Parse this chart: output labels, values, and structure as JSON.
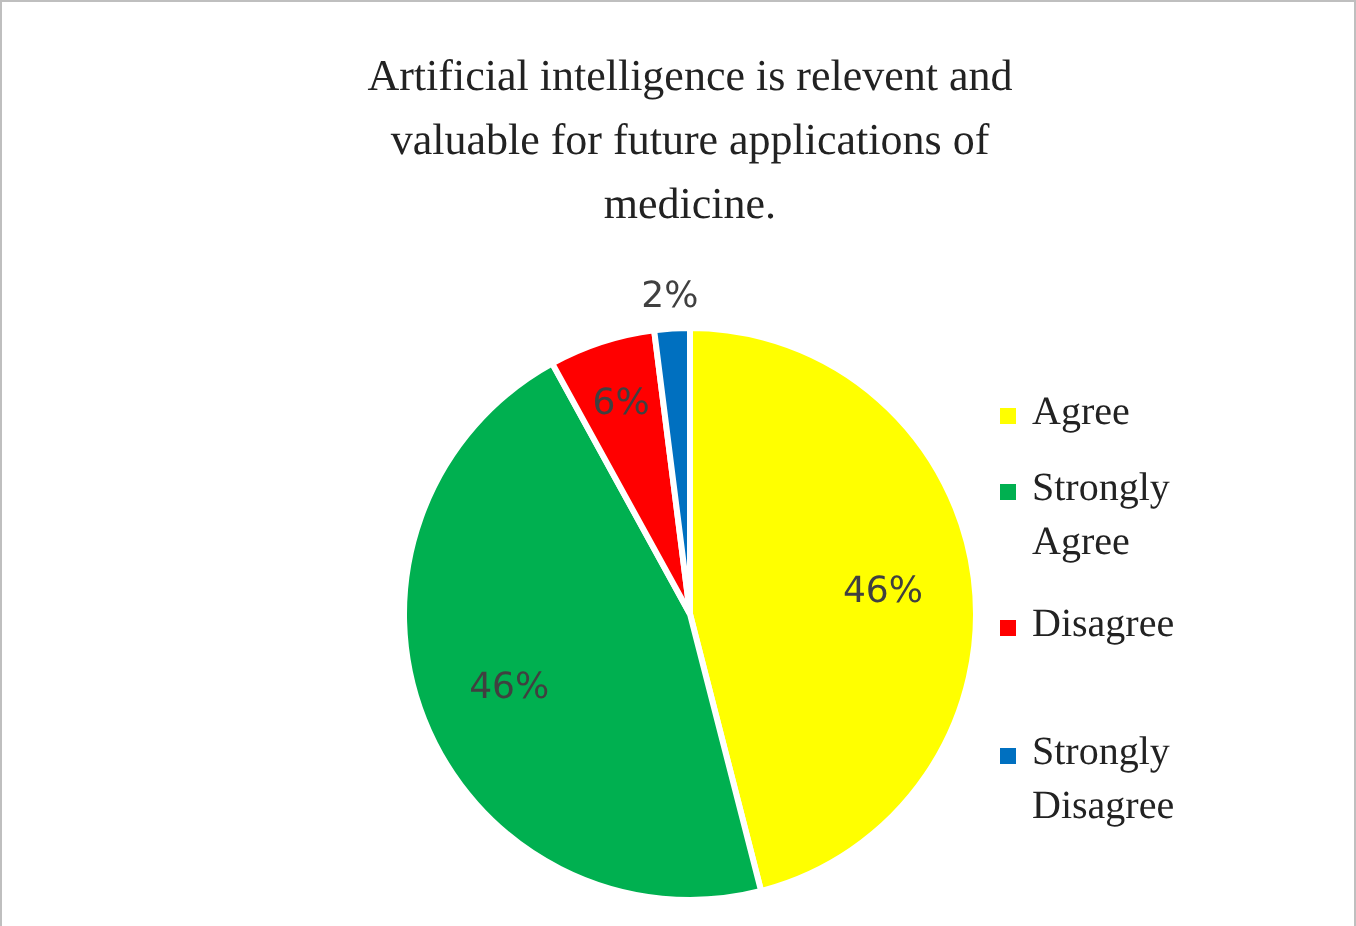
{
  "chart_data": {
    "type": "pie",
    "title": "Artificial intelligence is relevent and valuable for future applications of medicine.",
    "categories": [
      "Agree",
      "Strongly Agree",
      "Disagree",
      "Strongly Disagree"
    ],
    "values": [
      46,
      46,
      6,
      2
    ],
    "colors": [
      "#ffff00",
      "#00b050",
      "#ff0000",
      "#0070c0"
    ],
    "value_labels": [
      "46%",
      "46%",
      "6%",
      "2%"
    ],
    "legend": "right"
  }
}
